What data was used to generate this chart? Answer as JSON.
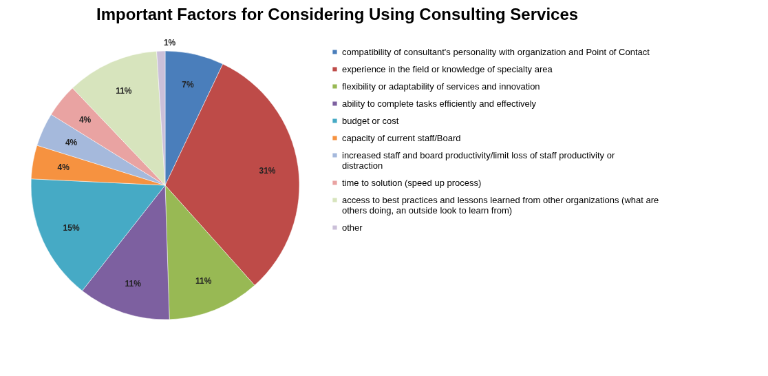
{
  "chart_data": {
    "type": "pie",
    "title": "Important Factors for Considering Using Consulting Services",
    "categories": [
      "compatibility of consultant's personality with organization and Point of Contact",
      "experience in the field or knowledge of specialty area",
      "flexibility or adaptability of services and innovation",
      "ability to complete tasks efficiently and effectively",
      "budget or cost",
      "capacity of current staff/Board",
      "increased staff and board productivity/limit loss of staff productivity or distraction",
      "time to solution (speed up process)",
      "access to best practices and lessons learned from other organizations (what are others doing, an outside look to learn from)",
      "other"
    ],
    "values": [
      7,
      31,
      11,
      11,
      15,
      4,
      4,
      4,
      11,
      1
    ],
    "colors": [
      "#4a7ebb",
      "#be4b48",
      "#98b954",
      "#7d60a0",
      "#46aac5",
      "#f69240",
      "#a5b9dc",
      "#e9a3a2",
      "#d7e4bd",
      "#cbc0d9"
    ],
    "value_labels": [
      "7%",
      "31%",
      "11%",
      "11%",
      "15%",
      "4%",
      "4%",
      "4%",
      "11%",
      "1%"
    ],
    "legend": "right"
  }
}
